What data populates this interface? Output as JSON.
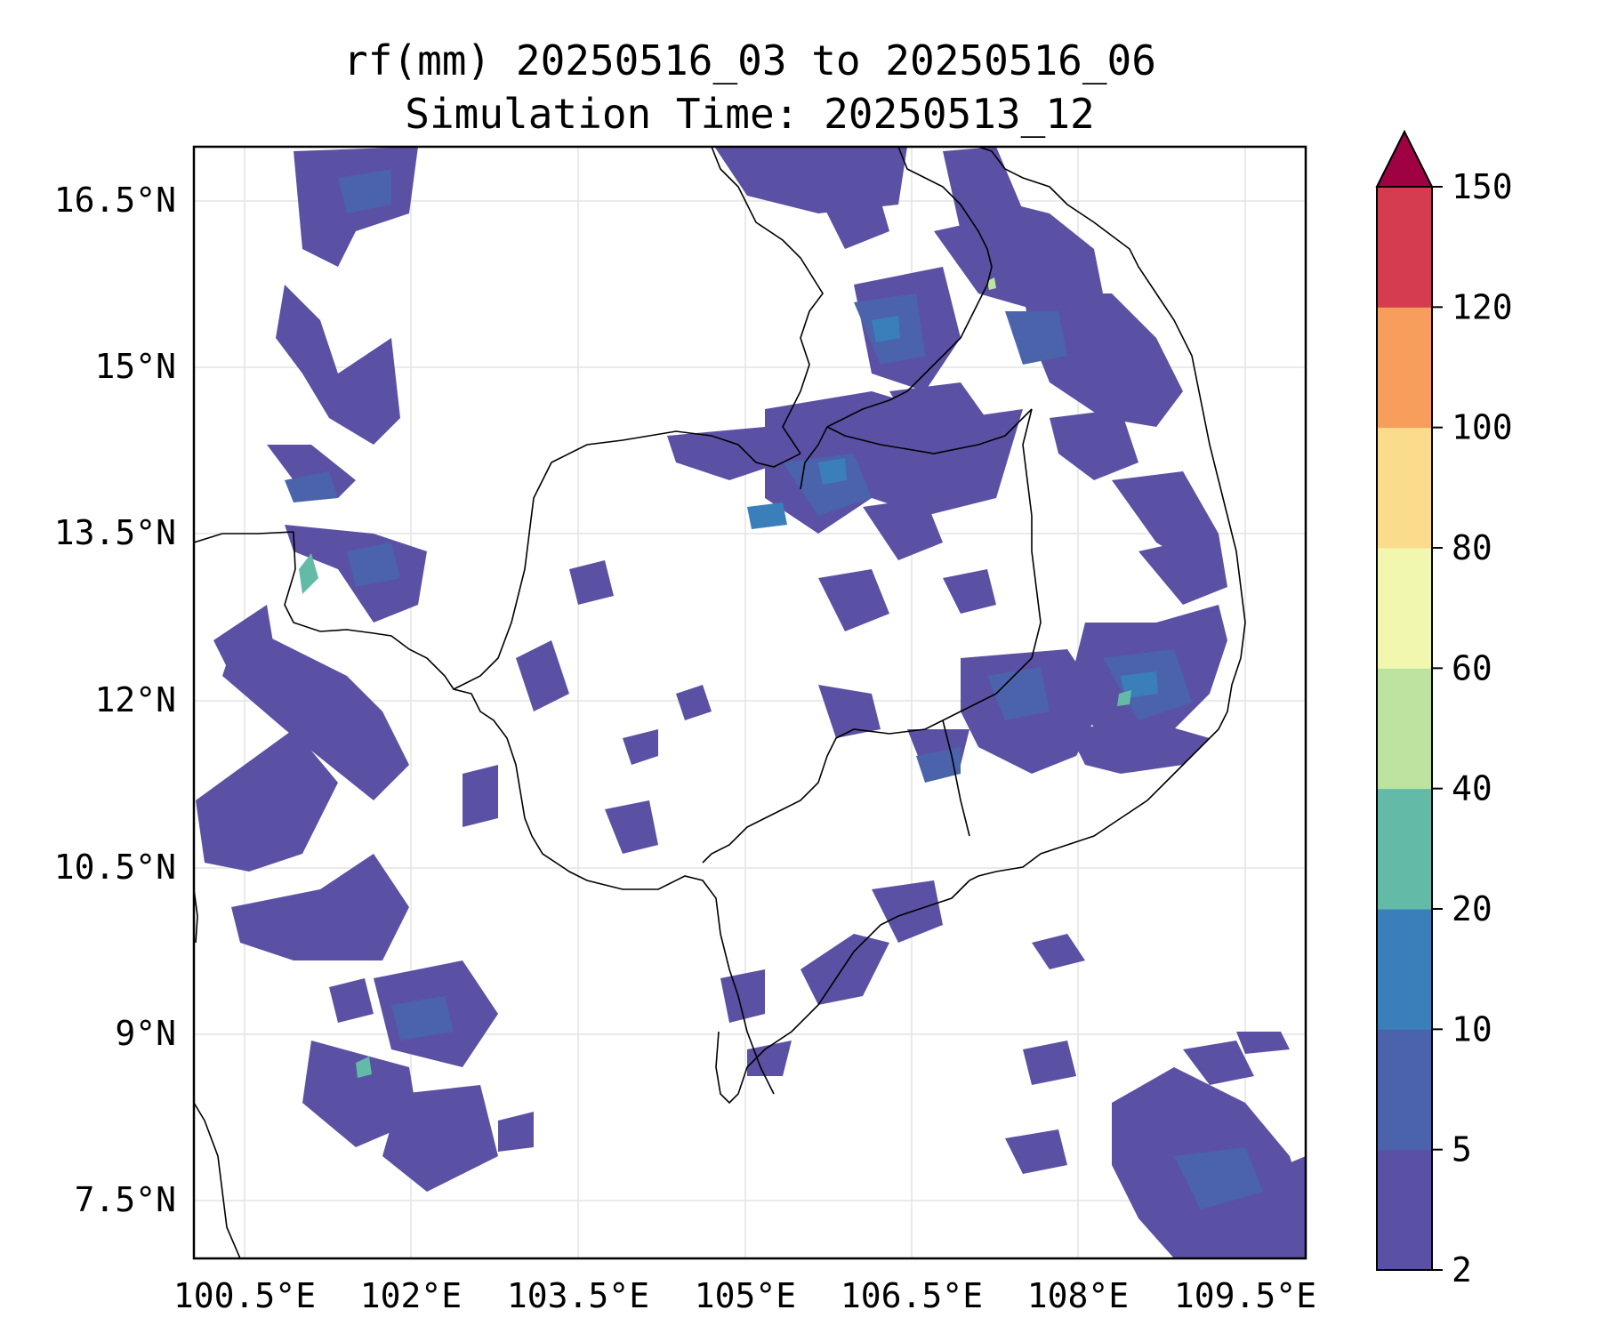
{
  "title": {
    "line1": "rf(mm) 20250516_03 to 20250516_06",
    "line2": "Simulation Time: 20250513_12"
  },
  "map": {
    "lon_ticks": [
      "100.5°E",
      "102°E",
      "103.5°E",
      "105°E",
      "106.5°E",
      "108°E",
      "109.5°E"
    ],
    "lat_ticks": [
      "16.5°N",
      "15°N",
      "13.5°N",
      "12°N",
      "10.5°N",
      "9°N",
      "7.5°N"
    ],
    "gridlines": true
  },
  "colorbar": {
    "tick_labels": [
      "2",
      "5",
      "10",
      "20",
      "40",
      "60",
      "80",
      "100",
      "120",
      "150"
    ],
    "colors": [
      "#5b51a4",
      "#4a63ab",
      "#3b7fba",
      "#63bba7",
      "#bde3a1",
      "#f1f7ae",
      "#fbdc8c",
      "#f89e5d",
      "#d63c4f",
      "#9f0142"
    ],
    "extend": "max"
  }
}
